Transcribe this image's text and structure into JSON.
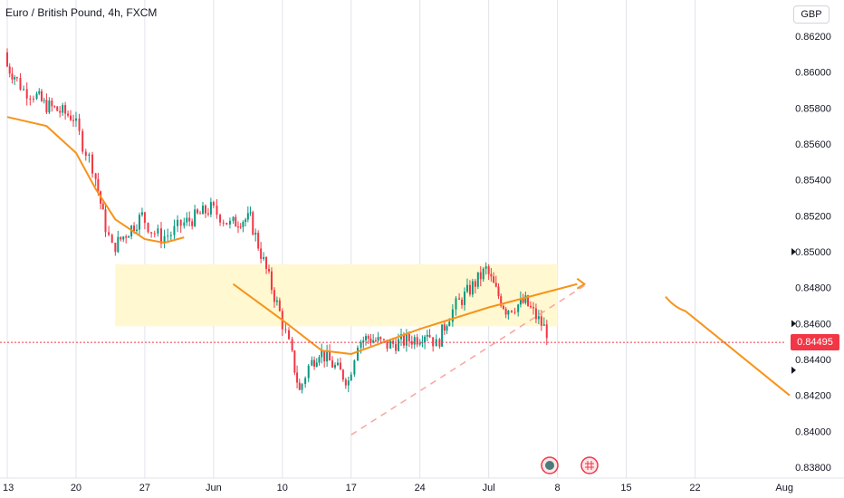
{
  "header": {
    "symbol_title": "Euro / British Pound, 4h, FXCM",
    "currency": "GBP"
  },
  "price_axis": {
    "ticks": [
      "0.86200",
      "0.86000",
      "0.85800",
      "0.85600",
      "0.85400",
      "0.85200",
      "0.85000",
      "0.84800",
      "0.84600",
      "0.84400",
      "0.84200",
      "0.84000",
      "0.83800"
    ],
    "last_price": "0.84495"
  },
  "time_axis": {
    "ticks": [
      "13",
      "20",
      "27",
      "Jun",
      "10",
      "17",
      "24",
      "Jul",
      "8",
      "15",
      "22",
      "Aug"
    ]
  },
  "colors": {
    "up": "#089981",
    "down": "#f23645",
    "ma": "#f7931a",
    "zone": "#fff8d0",
    "trendline": "#f7a59e",
    "last_price": "#f23645"
  },
  "icons": [
    "economic-event-icon",
    "holiday-flag-icon"
  ],
  "chart_data": {
    "type": "candlestick",
    "title": "Euro / British Pound, 4h, FXCM",
    "ylim": [
      0.8376,
      0.8625
    ],
    "y_unit": "GBP",
    "last_price": 0.84495,
    "daily_closes": [
      {
        "date": "May 13",
        "close": 0.8605
      },
      {
        "date": "May 14",
        "close": 0.8598
      },
      {
        "date": "May 15",
        "close": 0.859
      },
      {
        "date": "May 16",
        "close": 0.8588
      },
      {
        "date": "May 17",
        "close": 0.8582
      },
      {
        "date": "May 20",
        "close": 0.8575
      },
      {
        "date": "May 21",
        "close": 0.856
      },
      {
        "date": "May 22",
        "close": 0.8548
      },
      {
        "date": "May 23",
        "close": 0.852
      },
      {
        "date": "May 24",
        "close": 0.8502
      },
      {
        "date": "May 27",
        "close": 0.852
      },
      {
        "date": "May 28",
        "close": 0.8512
      },
      {
        "date": "May 29",
        "close": 0.8508
      },
      {
        "date": "May 30",
        "close": 0.851
      },
      {
        "date": "May 31",
        "close": 0.8515
      },
      {
        "date": "Jun 3",
        "close": 0.8524
      },
      {
        "date": "Jun 4",
        "close": 0.852
      },
      {
        "date": "Jun 5",
        "close": 0.8515
      },
      {
        "date": "Jun 6",
        "close": 0.8518
      },
      {
        "date": "Jun 7",
        "close": 0.8518
      },
      {
        "date": "Jun 10",
        "close": 0.8466
      },
      {
        "date": "Jun 11",
        "close": 0.8448
      },
      {
        "date": "Jun 12",
        "close": 0.8422
      },
      {
        "date": "Jun 13",
        "close": 0.8436
      },
      {
        "date": "Jun 14",
        "close": 0.8445
      },
      {
        "date": "Jun 17",
        "close": 0.8428
      },
      {
        "date": "Jun 18",
        "close": 0.845
      },
      {
        "date": "Jun 19",
        "close": 0.8452
      },
      {
        "date": "Jun 20",
        "close": 0.845
      },
      {
        "date": "Jun 21",
        "close": 0.8448
      },
      {
        "date": "Jun 24",
        "close": 0.8452
      },
      {
        "date": "Jun 25",
        "close": 0.8456
      },
      {
        "date": "Jun 26",
        "close": 0.8448
      },
      {
        "date": "Jun 27",
        "close": 0.8462
      },
      {
        "date": "Jun 28",
        "close": 0.847
      },
      {
        "date": "Jul 1",
        "close": 0.849
      },
      {
        "date": "Jul 2",
        "close": 0.8478
      },
      {
        "date": "Jul 3",
        "close": 0.8468
      },
      {
        "date": "Jul 4",
        "close": 0.847
      },
      {
        "date": "Jul 5",
        "close": 0.8472
      },
      {
        "date": "Jul 8",
        "close": 0.84495
      }
    ],
    "moving_average": [
      {
        "date": "May 13",
        "value": 0.8575
      },
      {
        "date": "May 17",
        "value": 0.857
      },
      {
        "date": "May 20",
        "value": 0.8555
      },
      {
        "date": "May 22",
        "value": 0.8535
      },
      {
        "date": "May 24",
        "value": 0.8518
      },
      {
        "date": "May 27",
        "value": 0.8507
      },
      {
        "date": "May 29",
        "value": 0.8505
      },
      {
        "date": "May 31",
        "value": 0.8508
      }
    ],
    "drawings": {
      "zone": {
        "from": "May 24",
        "to": "Jul 8",
        "top": 0.8493,
        "bottom": 0.84585
      },
      "projected_path": [
        {
          "date": "Jun 5",
          "value": 0.8482
        },
        {
          "date": "Jun 10",
          "value": 0.8462
        },
        {
          "date": "Jun 14",
          "value": 0.8445
        },
        {
          "date": "Jun 17",
          "value": 0.8443
        },
        {
          "date": "Jun 24",
          "value": 0.8457
        },
        {
          "date": "Jul 1",
          "value": 0.8469
        },
        {
          "date": "Jul 10",
          "value": 0.8482
        }
      ],
      "rising_trendline": [
        {
          "date": "Jun 17",
          "value": 0.8398
        },
        {
          "date": "Jul 11",
          "value": 0.8482
        }
      ],
      "falling_line": [
        {
          "date": "Jul 19",
          "value": 0.8475
        },
        {
          "date": "Aug 1",
          "value": 0.842
        }
      ]
    }
  }
}
